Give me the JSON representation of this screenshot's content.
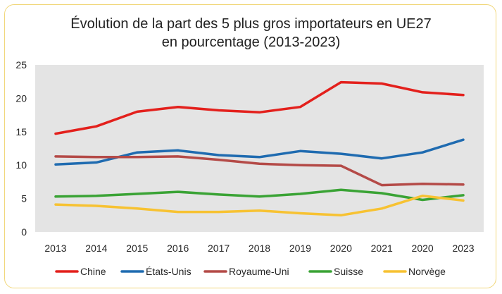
{
  "chart_data": {
    "type": "line",
    "title_lines": [
      "Évolution de la part des 5 plus gros importateurs en UE27",
      "en pourcentage (2013-2023)"
    ],
    "categories": [
      "2013",
      "2014",
      "2015",
      "2016",
      "2017",
      "2018",
      "2019",
      "2020",
      "2021",
      "2020",
      "2023"
    ],
    "ylim": [
      0,
      25
    ],
    "yticks": [
      0,
      5,
      10,
      15,
      20,
      25
    ],
    "grid": false,
    "legend": "bottom",
    "series": [
      {
        "name": "Chine",
        "color": "#e3201c",
        "values": [
          14.7,
          15.8,
          18.0,
          18.7,
          18.2,
          17.9,
          18.7,
          22.4,
          22.2,
          20.9,
          20.5
        ]
      },
      {
        "name": "États-Unis",
        "color": "#1f6bb0",
        "values": [
          10.1,
          10.4,
          11.9,
          12.2,
          11.5,
          11.2,
          12.1,
          11.7,
          11.0,
          11.9,
          13.8
        ]
      },
      {
        "name": "Royaume-Uni",
        "color": "#b44a47",
        "values": [
          11.3,
          11.2,
          11.2,
          11.3,
          10.8,
          10.2,
          10.0,
          9.9,
          7.0,
          7.2,
          7.1
        ]
      },
      {
        "name": "Suisse",
        "color": "#3aa335",
        "values": [
          5.3,
          5.4,
          5.7,
          6.0,
          5.6,
          5.3,
          5.7,
          6.3,
          5.8,
          4.8,
          5.5
        ]
      },
      {
        "name": "Norvège",
        "color": "#f7c232",
        "values": [
          4.1,
          3.9,
          3.5,
          3.0,
          3.0,
          3.2,
          2.8,
          2.5,
          3.5,
          5.4,
          4.7
        ]
      }
    ]
  }
}
